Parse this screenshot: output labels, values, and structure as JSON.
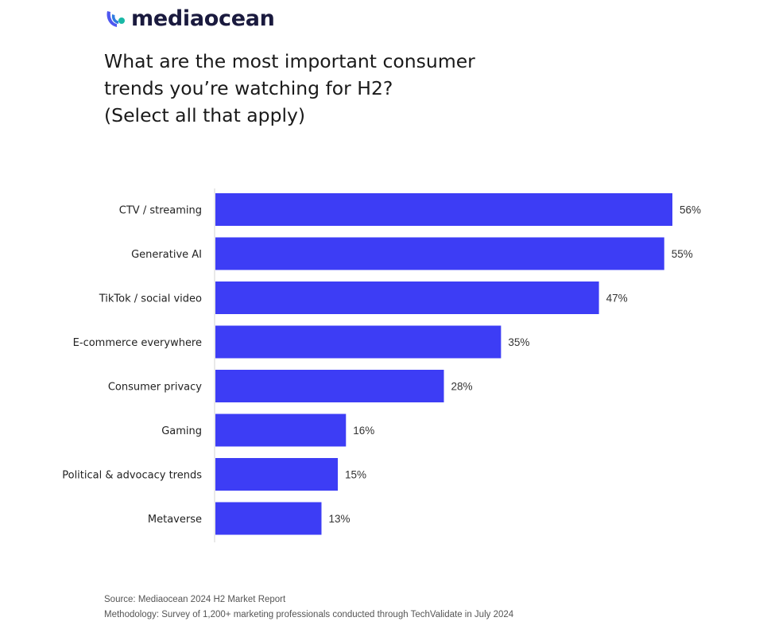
{
  "brand": {
    "name": "mediaocean",
    "logo_icon": "mediaocean-wave-icon",
    "logo_colors": [
      "#4e57f0",
      "#2f7be0",
      "#19b8a6"
    ]
  },
  "title": {
    "lines": [
      "What are the most important consumer",
      "trends you’re watching for H2?",
      "(Select all that apply)"
    ]
  },
  "chart_data": {
    "type": "bar",
    "orientation": "horizontal",
    "title": "What are the most important consumer trends you’re watching for H2? (Select all that apply)",
    "categories": [
      "CTV / streaming",
      "Generative AI",
      "TikTok / social video",
      "E-commerce everywhere",
      "Consumer privacy",
      "Gaming",
      "Political & advocacy trends",
      "Metaverse"
    ],
    "values": [
      56,
      55,
      47,
      35,
      28,
      16,
      15,
      13
    ],
    "value_labels": [
      "56%",
      "55%",
      "47%",
      "35%",
      "28%",
      "16%",
      "15%",
      "13%"
    ],
    "unit": "%",
    "xlabel": "",
    "ylabel": "",
    "xlim": [
      0,
      56
    ],
    "grid": false,
    "legend": "none",
    "bar_color": "#3d3df5"
  },
  "footer": {
    "source": "Source: Mediaocean 2024 H2 Market Report",
    "methodology": "Methodology: Survey of 1,200+ marketing professionals conducted through TechValidate in July 2024"
  }
}
